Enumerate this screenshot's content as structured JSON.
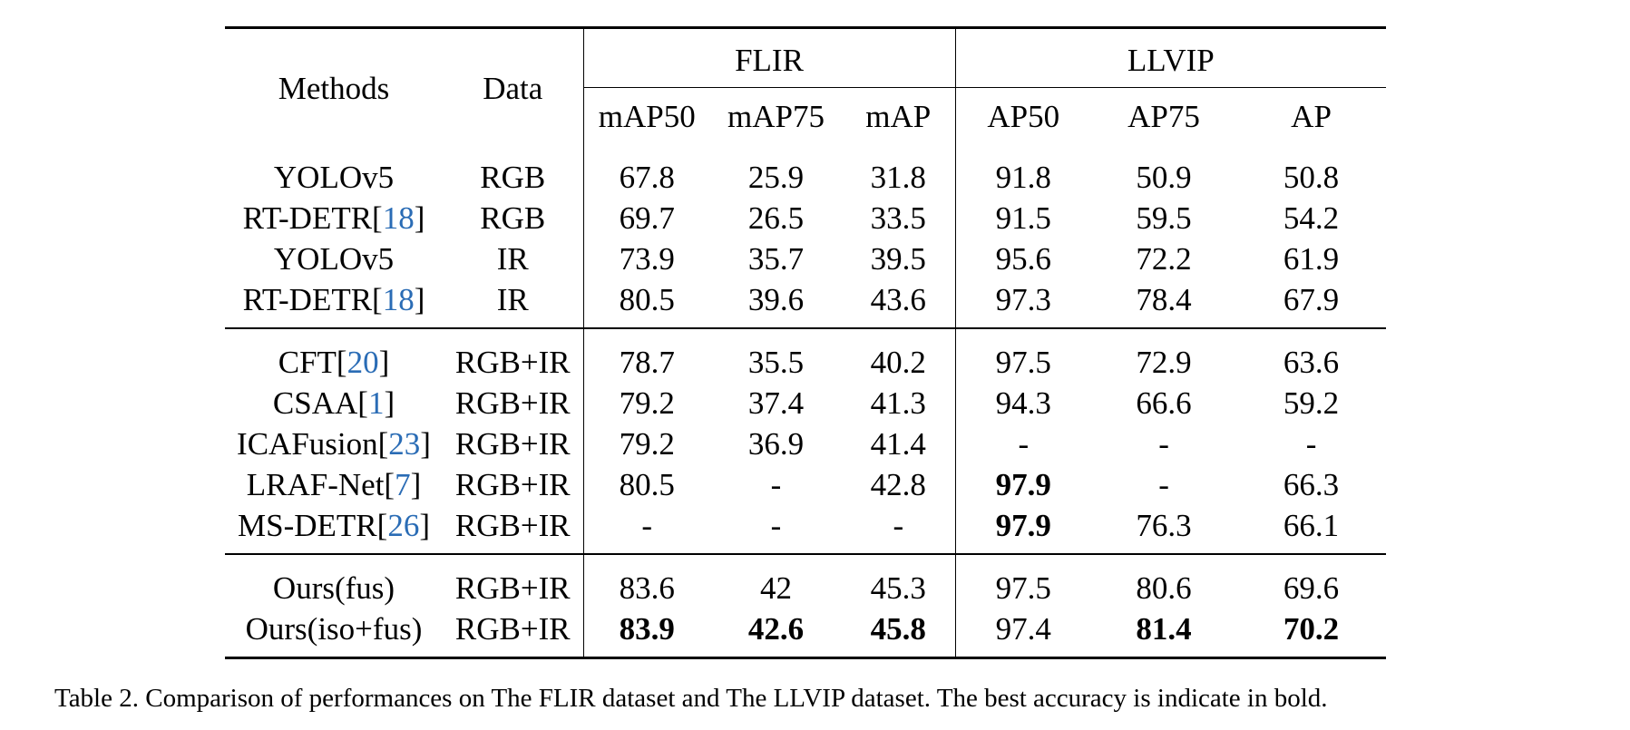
{
  "table": {
    "headers": {
      "methods": "Methods",
      "data": "Data",
      "group_flir": "FLIR",
      "group_llvip": "LLVIP",
      "flir_cols": [
        "mAP50",
        "mAP75",
        "mAP"
      ],
      "llvip_cols": [
        "AP50",
        "AP75",
        "AP"
      ]
    },
    "groups": [
      [
        {
          "method": "YOLOv5",
          "cite": "",
          "data": "RGB",
          "values": [
            "67.8",
            "25.9",
            "31.8",
            "91.8",
            "50.9",
            "50.8"
          ],
          "bold": []
        },
        {
          "method": "RT-DETR[",
          "cite": "18",
          "data": "RGB",
          "values": [
            "69.7",
            "26.5",
            "33.5",
            "91.5",
            "59.5",
            "54.2"
          ],
          "bold": []
        },
        {
          "method": "YOLOv5",
          "cite": "",
          "data": "IR",
          "values": [
            "73.9",
            "35.7",
            "39.5",
            "95.6",
            "72.2",
            "61.9"
          ],
          "bold": []
        },
        {
          "method": "RT-DETR[",
          "cite": "18",
          "data": "IR",
          "values": [
            "80.5",
            "39.6",
            "43.6",
            "97.3",
            "78.4",
            "67.9"
          ],
          "bold": []
        }
      ],
      [
        {
          "method": "CFT[",
          "cite": "20",
          "data": "RGB+IR",
          "values": [
            "78.7",
            "35.5",
            "40.2",
            "97.5",
            "72.9",
            "63.6"
          ],
          "bold": []
        },
        {
          "method": "CSAA[",
          "cite": "1",
          "data": "RGB+IR",
          "values": [
            "79.2",
            "37.4",
            "41.3",
            "94.3",
            "66.6",
            "59.2"
          ],
          "bold": []
        },
        {
          "method": "ICAFusion[",
          "cite": "23",
          "data": "RGB+IR",
          "values": [
            "79.2",
            "36.9",
            "41.4",
            "-",
            "-",
            "-"
          ],
          "bold": []
        },
        {
          "method": "LRAF-Net[",
          "cite": "7",
          "data": "RGB+IR",
          "values": [
            "80.5",
            "-",
            "42.8",
            "97.9",
            "-",
            "66.3"
          ],
          "bold": [
            3
          ]
        },
        {
          "method": "MS-DETR[",
          "cite": "26",
          "data": "RGB+IR",
          "values": [
            "-",
            "-",
            "-",
            "97.9",
            "76.3",
            "66.1"
          ],
          "bold": [
            3
          ]
        }
      ],
      [
        {
          "method": "Ours(fus)",
          "cite": "",
          "data": "RGB+IR",
          "values": [
            "83.6",
            "42",
            "45.3",
            "97.5",
            "80.6",
            "69.6"
          ],
          "bold": []
        },
        {
          "method": "Ours(iso+fus)",
          "cite": "",
          "data": "RGB+IR",
          "values": [
            "83.9",
            "42.6",
            "45.8",
            "97.4",
            "81.4",
            "70.2"
          ],
          "bold": [
            0,
            1,
            2,
            4,
            5
          ]
        }
      ]
    ]
  },
  "caption": "Table 2. Comparison of performances on The FLIR dataset and The LLVIP dataset. The best accuracy is indicate in bold."
}
